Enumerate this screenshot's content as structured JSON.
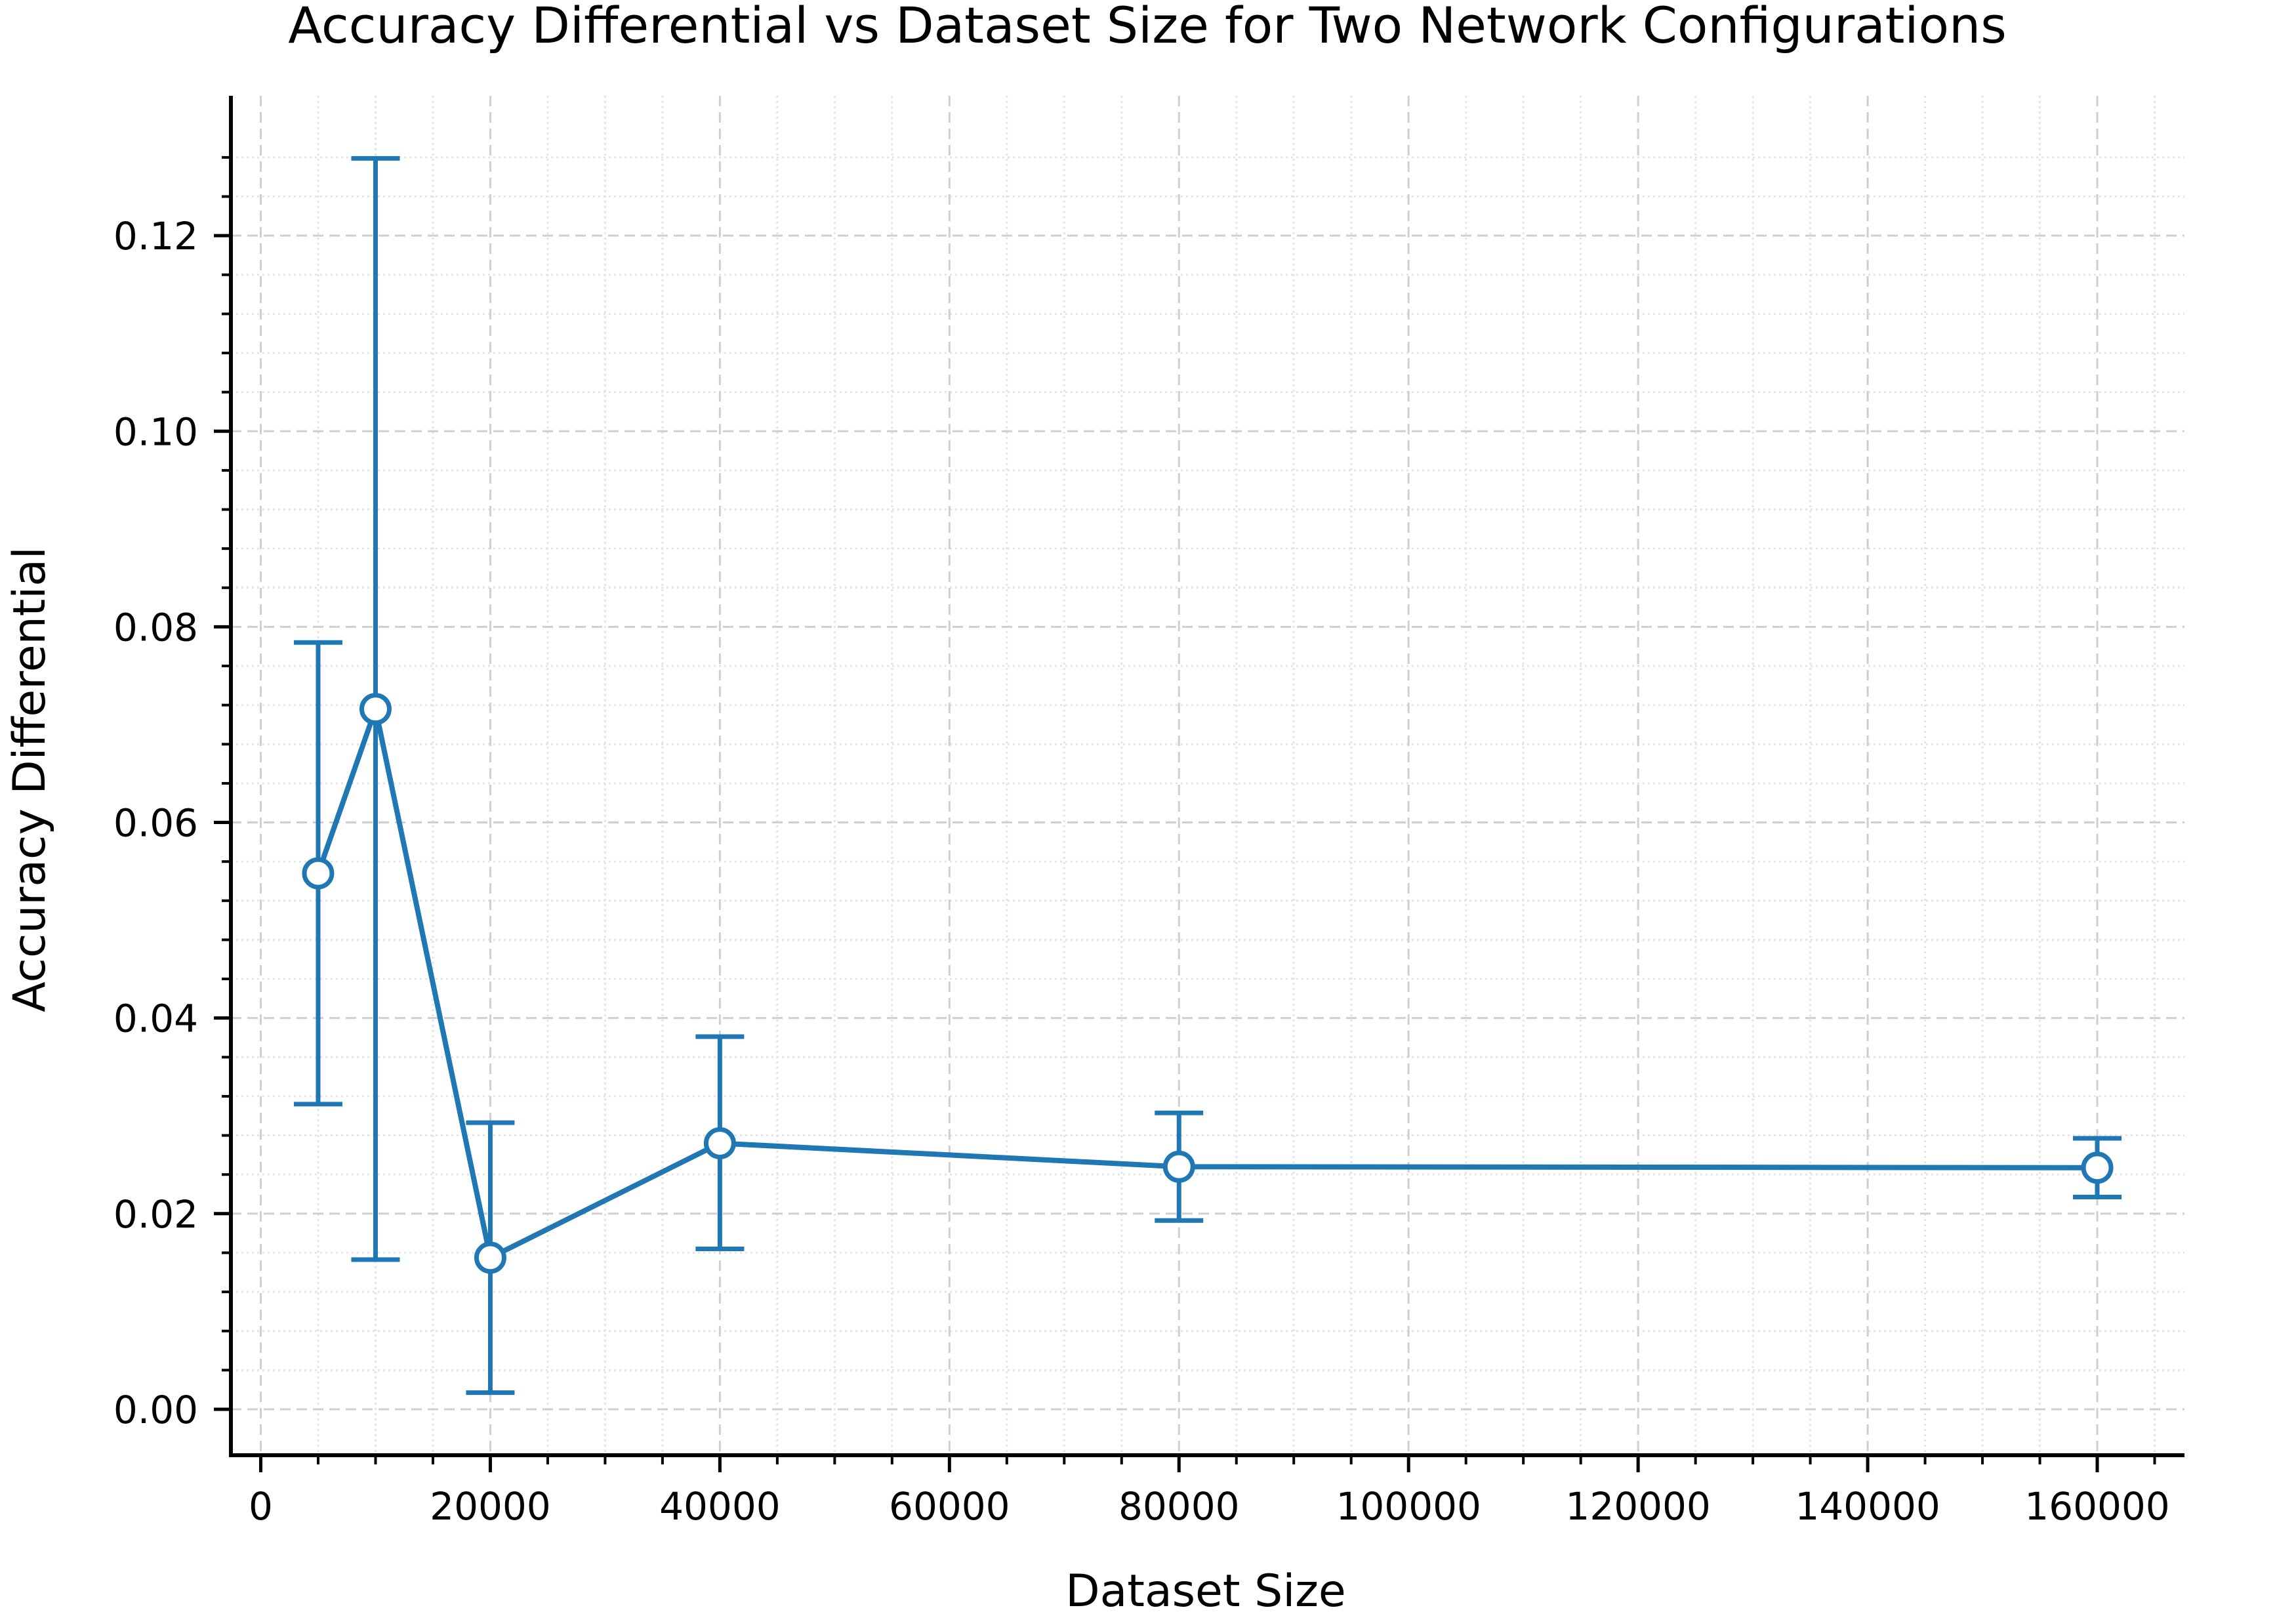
{
  "chart_data": {
    "type": "line",
    "title": "Accuracy Differential vs Dataset Size for Two Network Configurations",
    "xlabel": "Dataset Size",
    "ylabel": "Accuracy Differential",
    "xlim": [
      -2600,
      167600
    ],
    "ylim": [
      -0.0047,
      0.1343
    ],
    "x_ticks": [
      0,
      20000,
      40000,
      60000,
      80000,
      100000,
      120000,
      140000,
      160000
    ],
    "y_ticks": [
      0.0,
      0.02,
      0.04,
      0.06,
      0.08,
      0.1,
      0.12
    ],
    "x_tick_labels": [
      "0",
      "20000",
      "40000",
      "60000",
      "80000",
      "100000",
      "120000",
      "140000",
      "160000"
    ],
    "y_tick_labels": [
      "0.00",
      "0.02",
      "0.04",
      "0.06",
      "0.08",
      "0.10",
      "0.12"
    ],
    "grid": true,
    "minor_grid": true,
    "series": [
      {
        "color": "#1f77b4",
        "x": [
          5000,
          10000,
          20000,
          40000,
          80000,
          160000
        ],
        "y": [
          0.0548,
          0.0716,
          0.0155,
          0.0272,
          0.0248,
          0.0247
        ],
        "error_low": [
          0.0312,
          0.0153,
          0.0017,
          0.0164,
          0.0193,
          0.0217
        ],
        "error_high": [
          0.0784,
          0.1279,
          0.0293,
          0.0381,
          0.0303,
          0.0277
        ]
      }
    ]
  }
}
